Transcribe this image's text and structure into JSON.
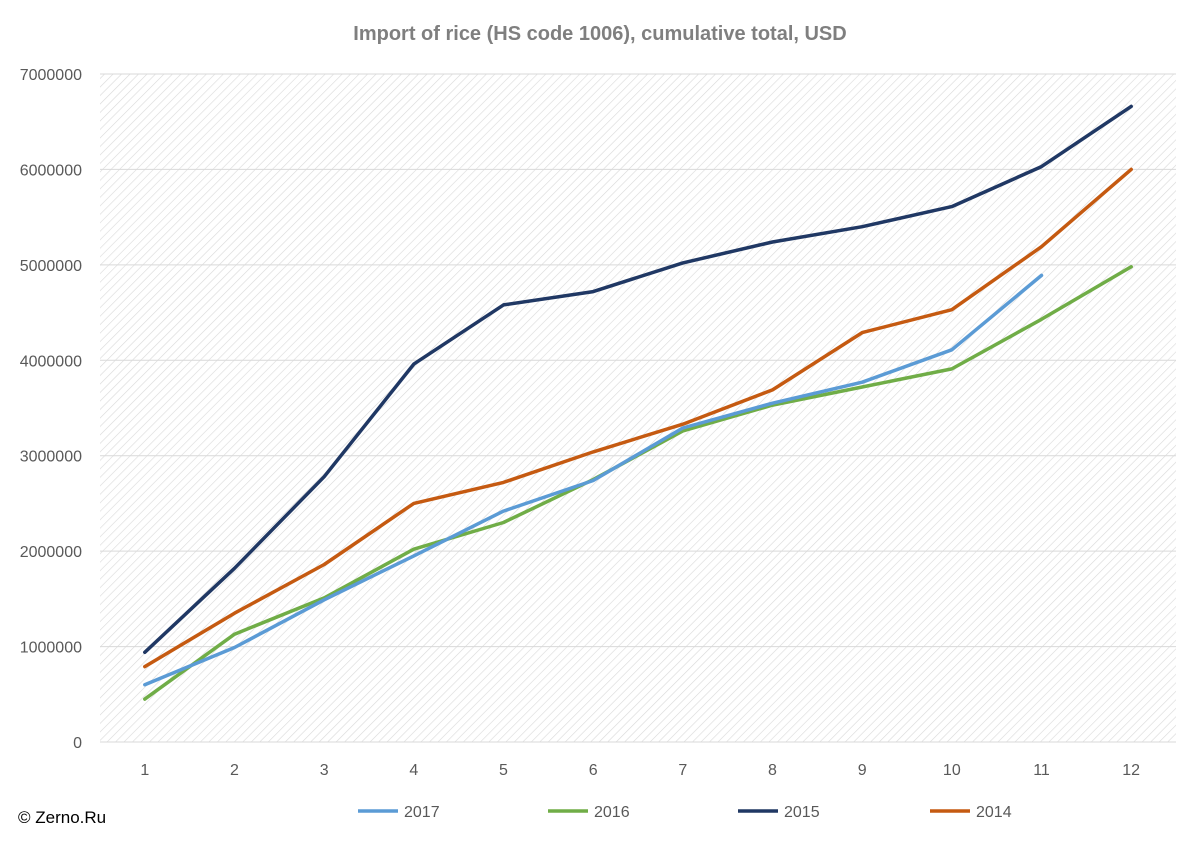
{
  "chart_data": {
    "type": "line",
    "title": "Import of rice (HS code 1006), cumulative total, USD",
    "xlabel": "",
    "ylabel": "",
    "categories": [
      "1",
      "2",
      "3",
      "4",
      "5",
      "6",
      "7",
      "8",
      "9",
      "10",
      "11",
      "12"
    ],
    "ylim": [
      0,
      7000000
    ],
    "yticks": [
      "0",
      "1000000",
      "2000000",
      "3000000",
      "4000000",
      "5000000",
      "6000000",
      "7000000"
    ],
    "grid": true,
    "legend_position": "bottom",
    "series": [
      {
        "name": "2017",
        "color": "#5b9bd5",
        "values": [
          600000,
          990000,
          1490000,
          1950000,
          2420000,
          2740000,
          3290000,
          3550000,
          3770000,
          4110000,
          4890000,
          null
        ]
      },
      {
        "name": "2016",
        "color": "#70ad47",
        "values": [
          450000,
          1130000,
          1510000,
          2020000,
          2300000,
          2750000,
          3260000,
          3530000,
          3720000,
          3910000,
          4430000,
          4980000
        ]
      },
      {
        "name": "2015",
        "color": "#203864",
        "values": [
          940000,
          1820000,
          2780000,
          3960000,
          4580000,
          4720000,
          5020000,
          5240000,
          5400000,
          5610000,
          6030000,
          6660000
        ]
      },
      {
        "name": "2014",
        "color": "#c55a11",
        "values": [
          790000,
          1350000,
          1860000,
          2500000,
          2720000,
          3040000,
          3330000,
          3690000,
          4290000,
          4530000,
          5190000,
          6000000
        ]
      }
    ]
  },
  "credit": "© Zerno.Ru"
}
